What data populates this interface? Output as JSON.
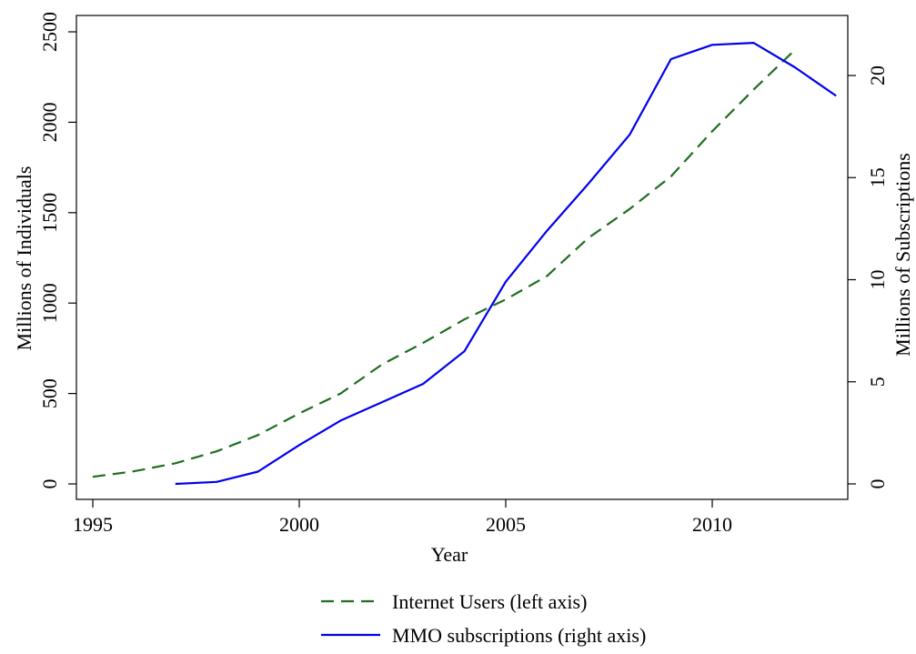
{
  "chart_data": {
    "type": "line",
    "title": "",
    "xlabel": "Year",
    "ylabel_left": "Millions of Individuals",
    "ylabel_right": "Millions of Subscriptions",
    "xlim": [
      1995,
      2013
    ],
    "ylim_left": [
      0,
      2500
    ],
    "ylim_right": [
      0,
      22
    ],
    "x_ticks": [
      1995,
      2000,
      2005,
      2010
    ],
    "y_left_ticks": [
      0,
      500,
      1000,
      1500,
      2000,
      2500
    ],
    "y_right_ticks": [
      0,
      5,
      10,
      15,
      20
    ],
    "grid": false,
    "legend_position": "bottom-center",
    "series": [
      {
        "name": "Internet Users (left axis)",
        "axis": "left",
        "color": "#1f6e1f",
        "style": "dashed",
        "x": [
          1995,
          1996,
          1997,
          1998,
          1999,
          2000,
          2001,
          2002,
          2003,
          2004,
          2005,
          2006,
          2007,
          2008,
          2009,
          2010,
          2011,
          2012
        ],
        "y": [
          39,
          70,
          114,
          180,
          270,
          390,
          500,
          660,
          780,
          910,
          1020,
          1150,
          1360,
          1520,
          1700,
          1950,
          2180,
          2400
        ]
      },
      {
        "name": "MMO subscriptions (right axis)",
        "axis": "right",
        "color": "#0000ee",
        "style": "solid",
        "x": [
          1997,
          1998,
          1999,
          2000,
          2001,
          2002,
          2003,
          2004,
          2005,
          2006,
          2007,
          2008,
          2009,
          2010,
          2011,
          2012,
          2013
        ],
        "y": [
          0.0,
          0.1,
          0.6,
          1.9,
          3.1,
          4.0,
          4.9,
          6.5,
          9.9,
          12.4,
          14.7,
          17.1,
          20.8,
          21.5,
          21.6,
          20.4,
          19.0
        ]
      }
    ]
  }
}
